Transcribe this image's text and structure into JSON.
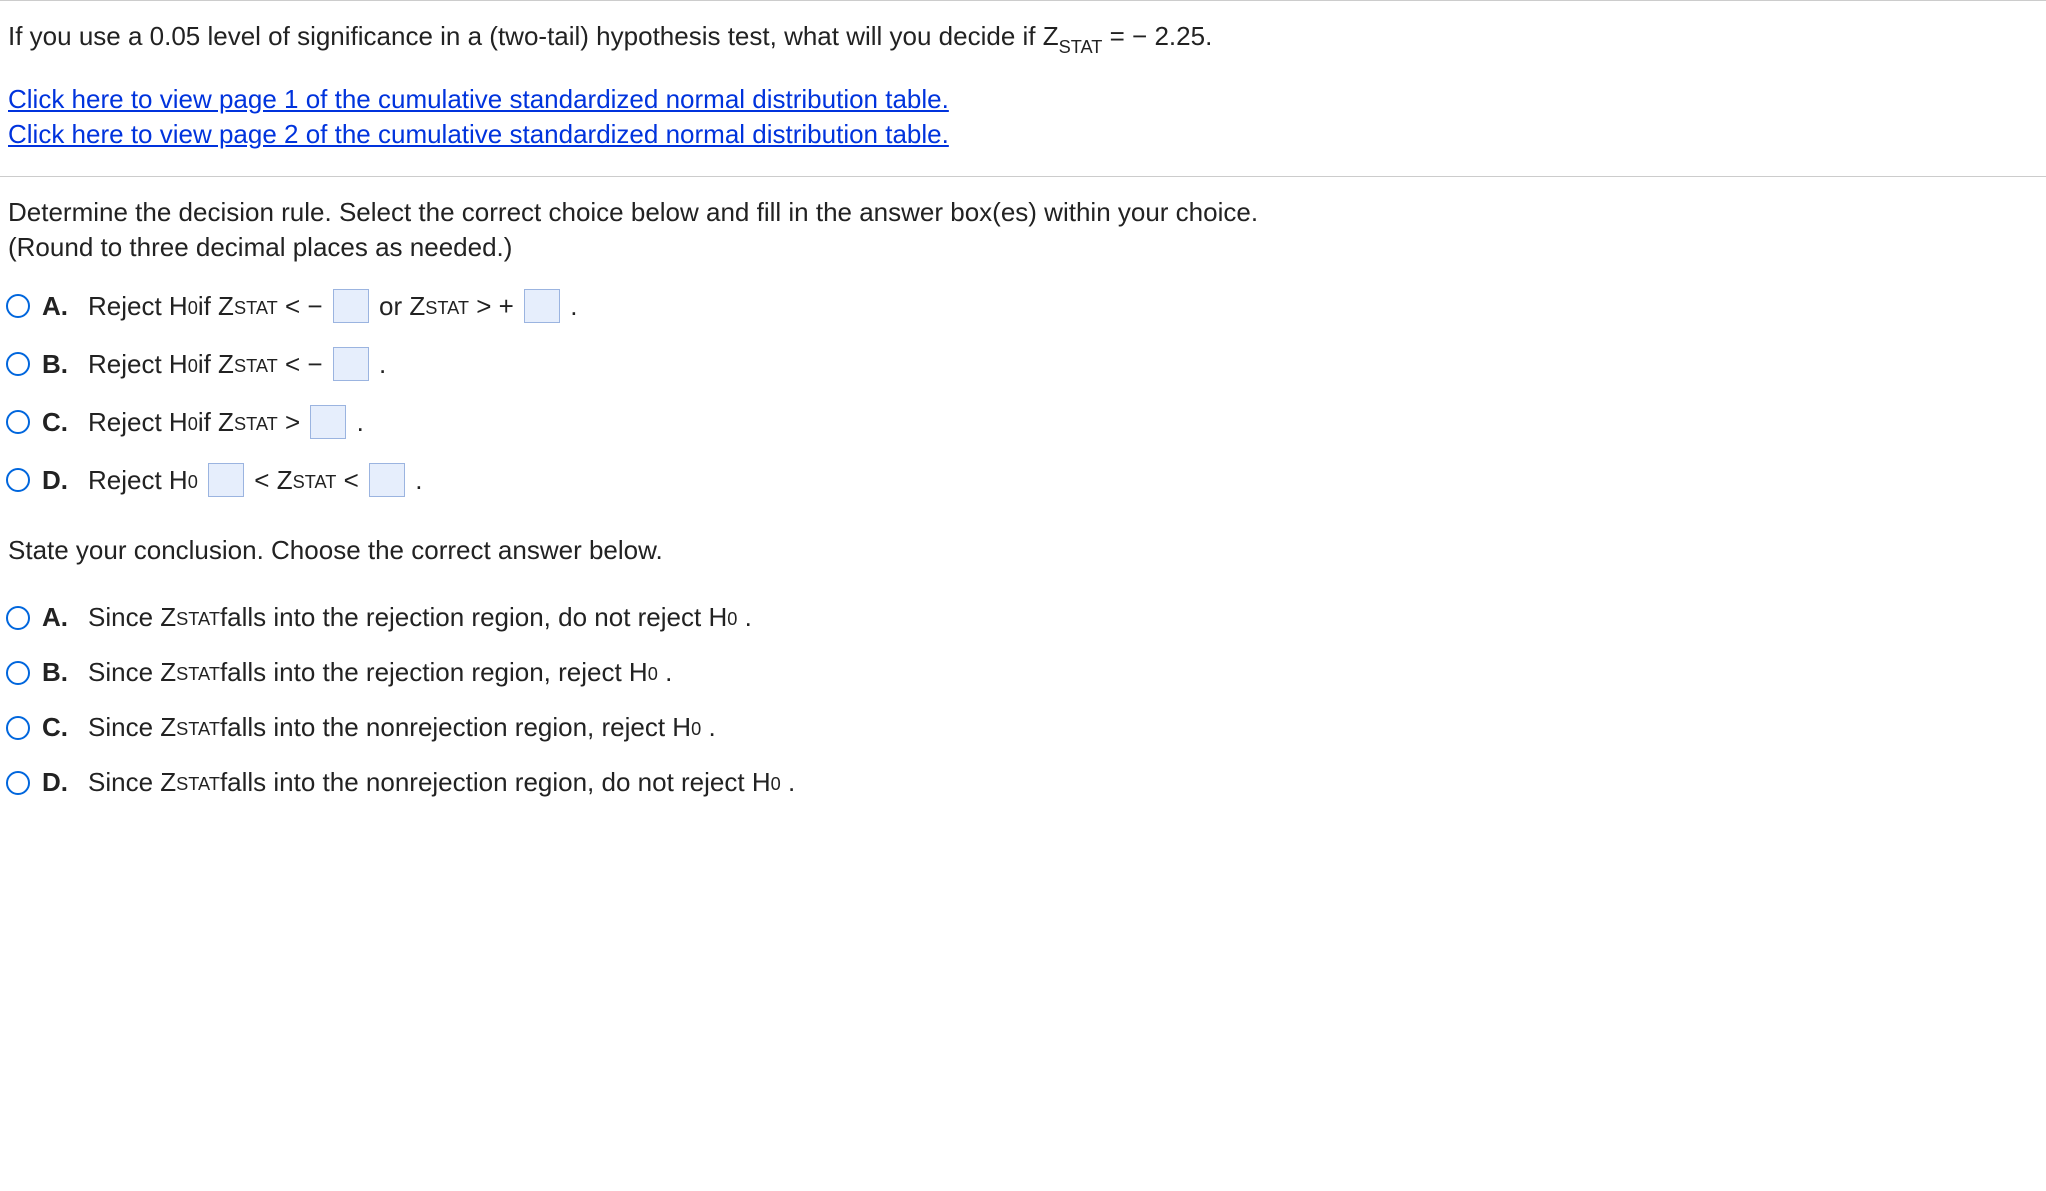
{
  "question": {
    "prefix": "If you use a 0.05 level of significance in a (two-tail) hypothesis test, what will you decide if Z",
    "sub1": "STAT",
    "suffix": " = − 2.25."
  },
  "links": {
    "page1": "Click here to view page 1 of the cumulative standardized normal distribution table.",
    "page2": "Click here to view page 2 of the cumulative standardized normal distribution table."
  },
  "instruction": {
    "line1": "Determine the decision rule. Select the correct choice below and fill in the answer box(es) within your choice.",
    "line2": "(Round to three decimal places as needed.)"
  },
  "rule_choices": {
    "A": {
      "letter": "A.",
      "p1": "Reject H",
      "p1sub": "0",
      "p2": " if Z",
      "p2sub": "STAT",
      "p3": " < − ",
      "p4": " or Z",
      "p4sub": "STAT",
      "p5": " > + ",
      "p6": " ."
    },
    "B": {
      "letter": "B.",
      "p1": "Reject H",
      "p1sub": "0",
      "p2": " if Z",
      "p2sub": "STAT",
      "p3": " < − ",
      "p4": " ."
    },
    "C": {
      "letter": "C.",
      "p1": "Reject H",
      "p1sub": "0",
      "p2": " if Z",
      "p2sub": "STAT",
      "p3": " > ",
      "p4": " ."
    },
    "D": {
      "letter": "D.",
      "p1": "Reject H",
      "p1sub": "0",
      "p2": " ",
      "p3": " < Z",
      "p3sub": "STAT",
      "p4": " < ",
      "p5": " ."
    }
  },
  "conclusion_prompt": "State your conclusion. Choose the correct answer below.",
  "conclusion_choices": {
    "A": {
      "letter": "A.",
      "pre": "Since Z",
      "sub": "STAT",
      "post": " falls into the rejection region, do not reject H",
      "sub2": "0",
      "end": " ."
    },
    "B": {
      "letter": "B.",
      "pre": "Since Z",
      "sub": "STAT",
      "post": " falls into the rejection region, reject H",
      "sub2": "0",
      "end": " ."
    },
    "C": {
      "letter": "C.",
      "pre": "Since Z",
      "sub": "STAT",
      "post": " falls into the nonrejection region, reject H",
      "sub2": "0",
      "end": " ."
    },
    "D": {
      "letter": "D.",
      "pre": "Since Z",
      "sub": "STAT",
      "post": " falls into the nonrejection region, do not reject H",
      "sub2": "0",
      "end": " ."
    }
  },
  "colors": {
    "link": "#0033dd",
    "radio_border": "#0066dd",
    "box_bg": "#e6eefc",
    "box_border": "#9bb4e0",
    "divider": "#cccccc",
    "text": "#222222"
  }
}
